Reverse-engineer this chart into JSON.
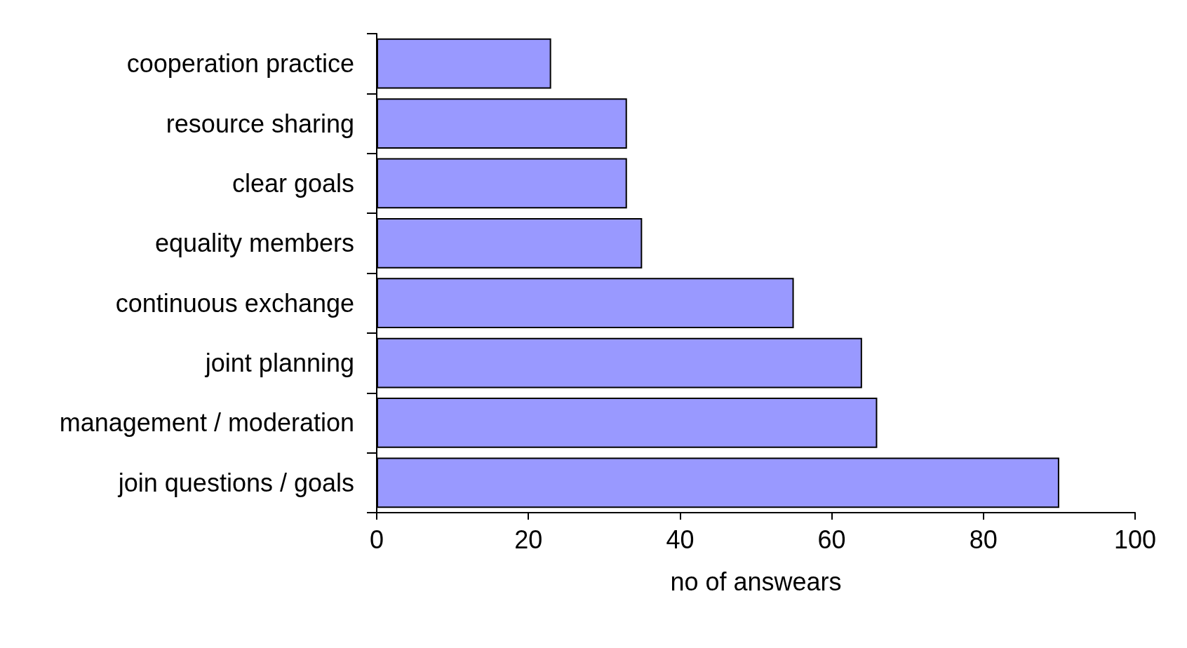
{
  "chart_data": {
    "type": "bar",
    "orientation": "horizontal",
    "xlabel": "no of answears",
    "categories": [
      "cooperation practice",
      "resource sharing",
      "clear goals",
      "equality members",
      "continuous exchange",
      "joint planning",
      "management / moderation",
      "join questions / goals"
    ],
    "values": [
      23,
      33,
      33,
      35,
      55,
      64,
      66,
      90
    ],
    "color": "#9999ff",
    "xlim": [
      0,
      100
    ],
    "xticks": [
      0,
      20,
      40,
      60,
      80,
      100
    ],
    "grid": false
  }
}
